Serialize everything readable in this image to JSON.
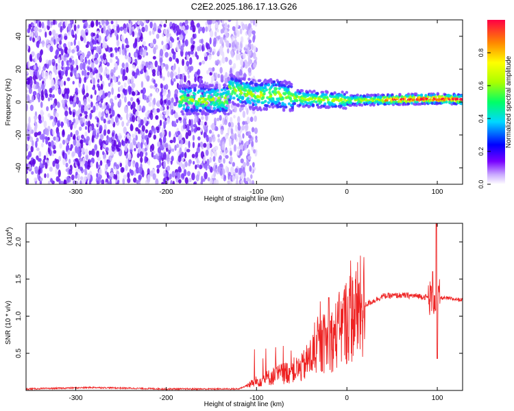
{
  "title": "C2E2.2025.186.17.13.G26",
  "colors": {
    "snr_line": "#ee2222",
    "scatter_high": "#5a00e0",
    "scatter_low": "#d8c4ff"
  },
  "chart_data": [
    {
      "type": "heatmap",
      "title": "C2E2.2025.186.17.13.G26",
      "xlabel": "Height of straight line (km)",
      "ylabel": "Frequency (Hz)",
      "xlim": [
        -355,
        128
      ],
      "ylim": [
        -50,
        50
      ],
      "xticks": [
        -300,
        -200,
        -100,
        0,
        100
      ],
      "yticks": [
        -40,
        -20,
        0,
        20,
        40
      ],
      "colorbar": {
        "label": "Normalized spectral amplitude",
        "range": [
          0,
          1
        ],
        "ticks": [
          "0.0",
          "0.2",
          "0.4",
          "0.6",
          "0.8"
        ],
        "colormap": "rainbow"
      },
      "ridge": {
        "description_points": [
          {
            "x": -130,
            "y": 8
          },
          {
            "x": -100,
            "y": 4
          },
          {
            "x": -80,
            "y": 5
          },
          {
            "x": -50,
            "y": 2
          },
          {
            "x": 0,
            "y": 1
          },
          {
            "x": 50,
            "y": 1.5
          },
          {
            "x": 100,
            "y": 2
          },
          {
            "x": 128,
            "y": 1.5
          }
        ]
      },
      "noise_region_x": [
        -355,
        -140
      ]
    },
    {
      "type": "line",
      "xlabel": "Height of straight line (km)",
      "ylabel": "SNR (10 * v/v)",
      "multiplier_label": "(x10",
      "multiplier_exp": "4",
      "multiplier_close": ")",
      "xlim": [
        -355,
        128
      ],
      "ylim": [
        0,
        2.25
      ],
      "xticks": [
        -300,
        -200,
        -100,
        0,
        100
      ],
      "yticks": [
        "0.5",
        "1.0",
        "1.5",
        "2.0"
      ],
      "yticks_values": [
        0.5,
        1.0,
        1.5,
        2.0
      ],
      "series": [
        {
          "envelope": [
            {
              "x": -355,
              "y": 0.02
            },
            {
              "x": -280,
              "y": 0.04
            },
            {
              "x": -200,
              "y": 0.02
            },
            {
              "x": -120,
              "y": 0.02
            },
            {
              "x": -100,
              "y": 0.12
            },
            {
              "x": -80,
              "y": 0.2
            },
            {
              "x": -50,
              "y": 0.3
            },
            {
              "x": -30,
              "y": 0.6
            },
            {
              "x": -15,
              "y": 0.7
            },
            {
              "x": 0,
              "y": 0.95
            },
            {
              "x": 20,
              "y": 1.15
            },
            {
              "x": 40,
              "y": 1.27
            },
            {
              "x": 60,
              "y": 1.28
            },
            {
              "x": 80,
              "y": 1.27
            },
            {
              "x": 92,
              "y": 1.25
            },
            {
              "x": 100,
              "y": 1.25
            },
            {
              "x": 110,
              "y": 1.24
            },
            {
              "x": 128,
              "y": 1.22
            }
          ],
          "spikes": [
            {
              "x": -20,
              "y": 1.25
            },
            {
              "x": 95,
              "y": 1.6
            },
            {
              "x": 99,
              "y": 2.25
            },
            {
              "x": 100,
              "y": 0.43
            }
          ]
        }
      ]
    }
  ]
}
